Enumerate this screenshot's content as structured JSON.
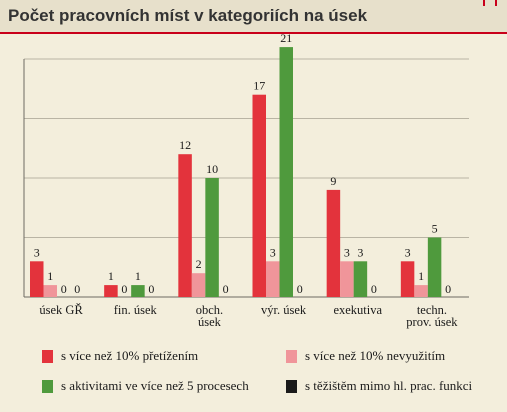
{
  "title": "Počet pracovních míst v kategoriích na úsek",
  "chart_data": {
    "type": "bar",
    "categories": [
      [
        "úsek GŘ"
      ],
      [
        "fin. úsek"
      ],
      [
        "obch.",
        "úsek"
      ],
      [
        "výr. úsek"
      ],
      [
        "exekutiva"
      ],
      [
        "techn.",
        "prov. úsek"
      ]
    ],
    "series": [
      {
        "name": "s více než 10% přetížením",
        "color": "#e3333c",
        "values": [
          3,
          1,
          12,
          17,
          9,
          3
        ]
      },
      {
        "name": "s více než 10% nevyužitím",
        "color": "#f0959a",
        "values": [
          1,
          0,
          2,
          3,
          3,
          1
        ]
      },
      {
        "name": "s aktivitami ve více než 5 procesech",
        "color": "#4f9a3d",
        "values": [
          0,
          1,
          10,
          21,
          3,
          5
        ]
      },
      {
        "name": "s těžištěm mimo hl. prac. funkci",
        "color": "#1a1a1a",
        "values": [
          0,
          0,
          0,
          0,
          0,
          0
        ]
      }
    ],
    "ylim": [
      0,
      20
    ],
    "yticks": [
      0,
      5,
      10,
      15,
      20
    ],
    "grid": true,
    "legend_position": "bottom"
  }
}
